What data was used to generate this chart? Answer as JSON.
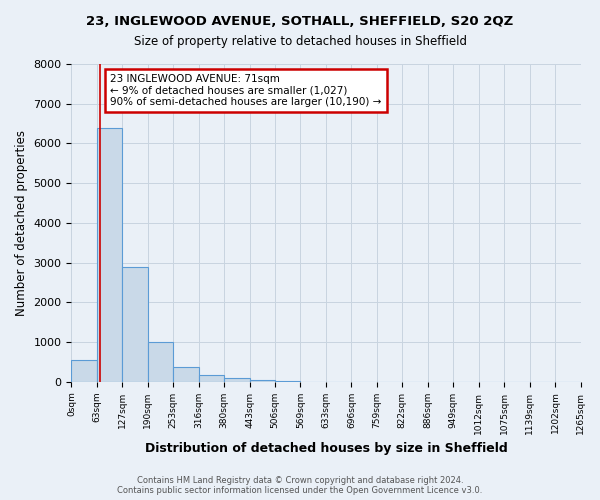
{
  "title1": "23, INGLEWOOD AVENUE, SOTHALL, SHEFFIELD, S20 2QZ",
  "title2": "Size of property relative to detached houses in Sheffield",
  "xlabel": "Distribution of detached houses by size in Sheffield",
  "ylabel": "Number of detached properties",
  "footnote": "Contains HM Land Registry data © Crown copyright and database right 2024.\nContains public sector information licensed under the Open Government Licence v3.0.",
  "bin_labels": [
    "0sqm",
    "63sqm",
    "127sqm",
    "190sqm",
    "253sqm",
    "316sqm",
    "380sqm",
    "443sqm",
    "506sqm",
    "569sqm",
    "633sqm",
    "696sqm",
    "759sqm",
    "822sqm",
    "886sqm",
    "949sqm",
    "1012sqm",
    "1075sqm",
    "1139sqm",
    "1202sqm",
    "1265sqm"
  ],
  "bar_heights": [
    560,
    6400,
    2900,
    1000,
    370,
    160,
    90,
    50,
    30,
    0,
    0,
    0,
    0,
    0,
    0,
    0,
    0,
    0,
    0,
    0
  ],
  "bar_color": "#c9d9e8",
  "bar_edge_color": "#5b9bd5",
  "property_line_x": 71,
  "property_line_color": "#cc0000",
  "annotation_text": "23 INGLEWOOD AVENUE: 71sqm\n← 9% of detached houses are smaller (1,027)\n90% of semi-detached houses are larger (10,190) →",
  "annotation_box_color": "#cc0000",
  "annotation_bg": "#ffffff",
  "ylim": [
    0,
    8000
  ],
  "yticks": [
    0,
    1000,
    2000,
    3000,
    4000,
    5000,
    6000,
    7000,
    8000
  ],
  "grid_color": "#c8d4e0",
  "background_color": "#eaf0f7",
  "bin_width": 63
}
